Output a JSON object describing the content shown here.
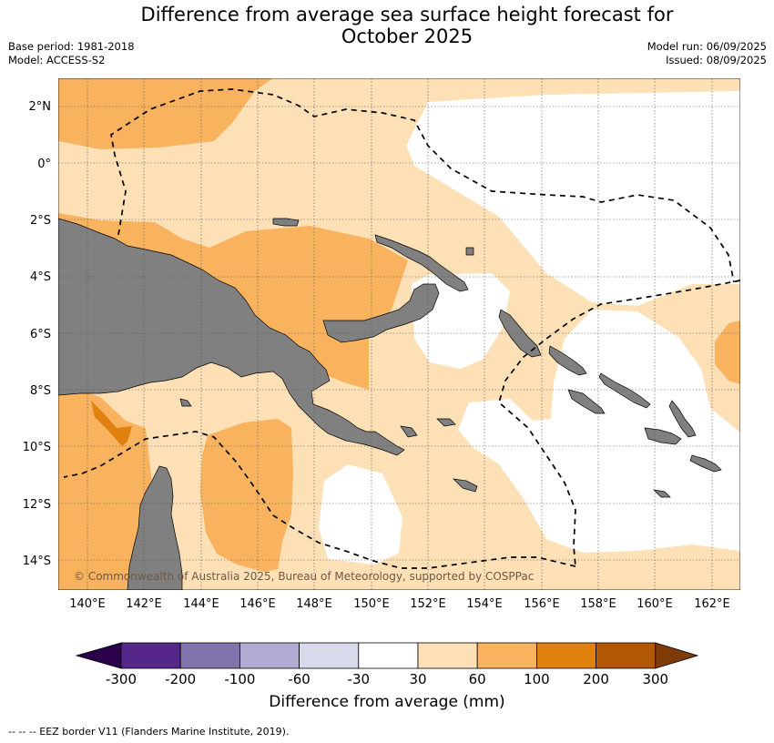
{
  "header": {
    "title_line1": "Difference from average sea surface height forecast for",
    "title_line2": "October 2025",
    "base_period": "Base period: 1981-2018",
    "model": "Model: ACCESS-S2",
    "model_run": "Model run: 06/09/2025",
    "issued": "Issued: 08/09/2025"
  },
  "map": {
    "lon_labels": [
      "140°E",
      "142°E",
      "144°E",
      "146°E",
      "148°E",
      "150°E",
      "152°E",
      "154°E",
      "156°E",
      "158°E",
      "160°E",
      "162°E"
    ],
    "lat_labels": [
      "2°N",
      "0°",
      "2°S",
      "4°S",
      "6°S",
      "8°S",
      "10°S",
      "12°S",
      "14°S"
    ],
    "copyright": "© Commonwealth of Australia 2025, Bureau of Meteorology, supported by COSPPac",
    "colors": {
      "land": "#808080",
      "band_30_60": "#fde0b6",
      "band_60_100": "#f9b35e",
      "band_100_200": "#e0800f",
      "neutral": "#ffffff"
    }
  },
  "colorbar": {
    "tick_labels": [
      "-300",
      "-200",
      "-100",
      "-60",
      "-30",
      "30",
      "60",
      "100",
      "200",
      "300"
    ],
    "colors": [
      "#2d004b",
      "#542788",
      "#8073ac",
      "#b2abd2",
      "#d8daeb",
      "#ffffff",
      "#fde0b6",
      "#f9b35e",
      "#e0800f",
      "#b35806",
      "#7f3b08"
    ],
    "label": "Difference from average (mm)"
  },
  "footer": {
    "legend_text": "--  --  -- EEZ border V11 (Flanders Marine Institute, 2019)."
  }
}
